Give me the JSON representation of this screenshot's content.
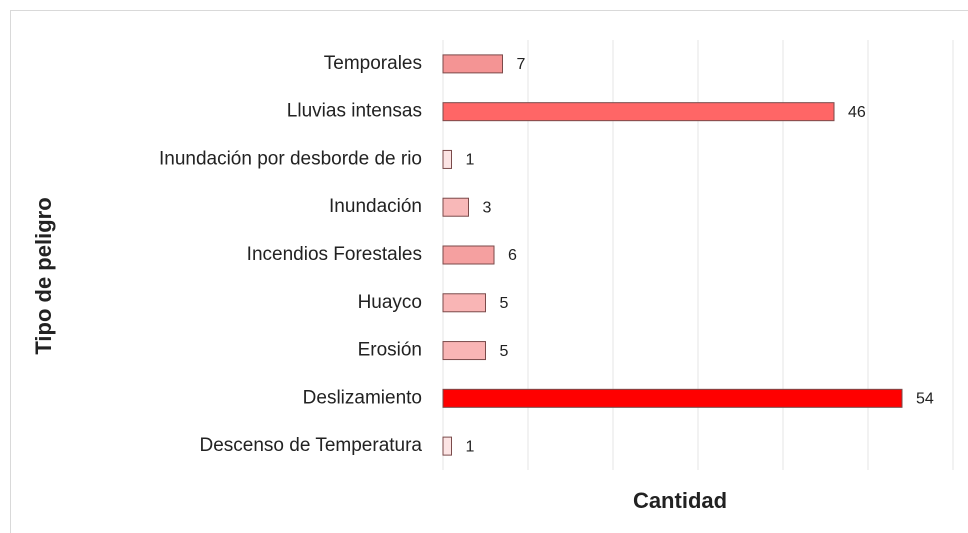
{
  "chart_data": {
    "type": "bar",
    "orientation": "horizontal",
    "x_label": "Cantidad",
    "y_label": "Tipo de peligro",
    "categories": [
      "Temporales",
      "Lluvias intensas",
      "Inundación por desborde de rio",
      "Inundación",
      "Incendios Forestales",
      "Huayco",
      "Erosión",
      "Deslizamiento",
      "Descenso de Temperatura"
    ],
    "values": [
      7,
      46,
      1,
      3,
      6,
      5,
      5,
      54,
      1
    ],
    "colors": [
      "#f49494",
      "#ff6666",
      "#fce4e4",
      "#f8b8b8",
      "#f5a0a0",
      "#f9b5b5",
      "#f9b5b5",
      "#ff0000",
      "#fce4e4"
    ],
    "xlim": [
      0,
      60
    ],
    "xticks": [
      0,
      10,
      20,
      30,
      40,
      50,
      60
    ],
    "grid": true
  }
}
